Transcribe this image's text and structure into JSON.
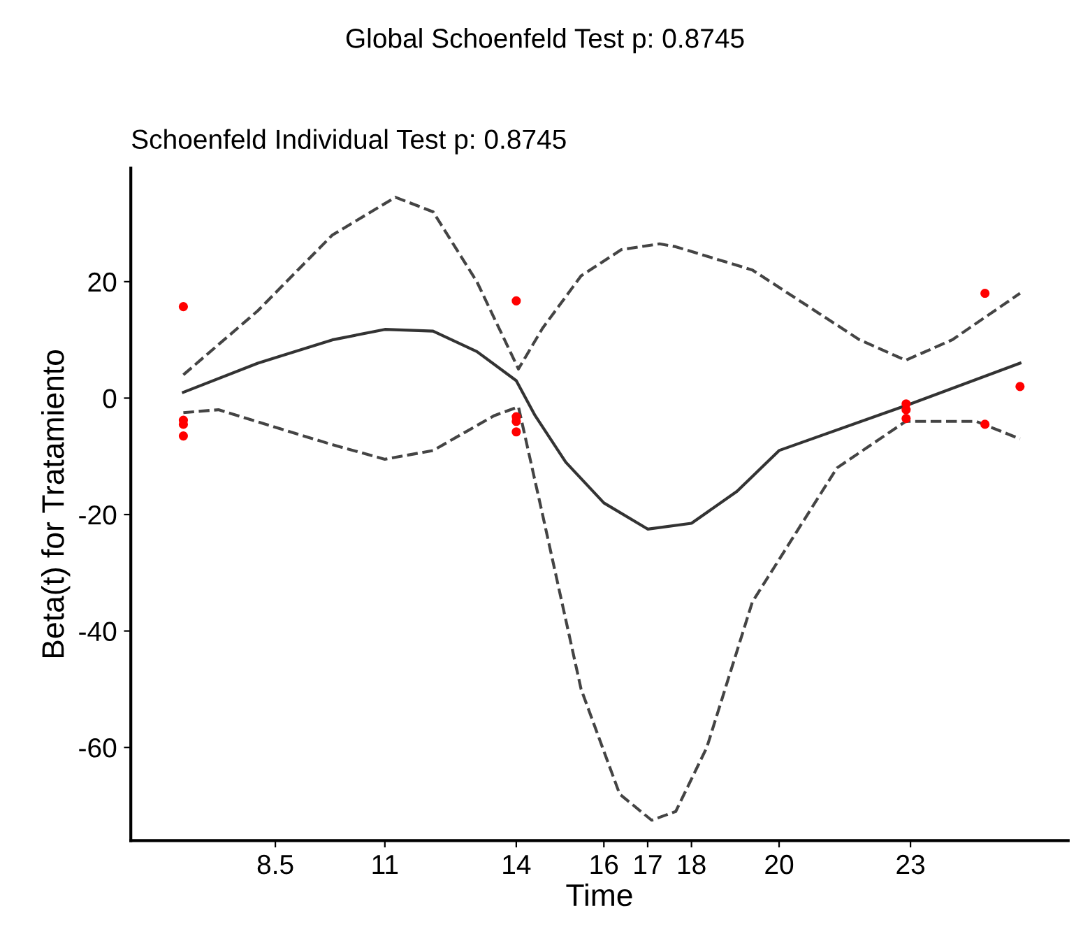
{
  "chart_data": {
    "type": "line",
    "title": "Global Schoenfeld Test p: 0.8745",
    "subtitle": "Schoenfeld Individual Test p: 0.8745",
    "xlabel": "Time",
    "ylabel": "Beta(t) for Tratamiento",
    "xlim": [
      5.2,
      26.6
    ],
    "ylim": [
      -76,
      39.5
    ],
    "xticks": [
      8.5,
      11,
      14,
      16,
      17,
      18,
      20,
      23
    ],
    "yticks": [
      -60,
      -40,
      -20,
      0,
      20
    ],
    "grid": false,
    "legend": false,
    "series": [
      {
        "color": "#333333",
        "line_style": "solid",
        "x": [
          6.4,
          8.1,
          9.8,
          11,
          12.1,
          13.1,
          14,
          14.43,
          15.13,
          16,
          17,
          18,
          19.04,
          20,
          23,
          25.5
        ],
        "values": [
          1,
          6,
          10,
          11.8,
          11.5,
          8,
          3,
          -3,
          -11,
          -18,
          -22.5,
          -21.5,
          -16,
          -9,
          -1,
          6
        ]
      },
      {
        "color": "#444444",
        "line_style": "dashed",
        "x": [
          6.4,
          8.1,
          9.8,
          11.24,
          12.1,
          13.1,
          14.05,
          14.6,
          15.48,
          16.4,
          17.27,
          17.64,
          19.39,
          21.84,
          22.89,
          23.95,
          25.5
        ],
        "values": [
          4,
          15,
          28,
          34.5,
          32,
          20,
          5,
          12,
          21,
          25.5,
          26.5,
          26,
          22,
          10,
          6.5,
          10,
          18
        ]
      },
      {
        "color": "#444444",
        "line_style": "dashed",
        "x": [
          6.4,
          7.2,
          9.8,
          11,
          12.1,
          13.5,
          14.05,
          14.6,
          15.48,
          16.36,
          17.09,
          17.64,
          18.35,
          19.39,
          21.32,
          22.89,
          24.5,
          25.5
        ],
        "values": [
          -2.5,
          -2,
          -8,
          -10.5,
          -9,
          -3,
          -1.5,
          -20,
          -50,
          -68,
          -72.5,
          -71,
          -60,
          -35,
          -12,
          -4,
          -4,
          -7
        ]
      },
      {
        "type": "scatter",
        "color": "#ff0000",
        "marker": "circle",
        "x": [
          6.4,
          6.4,
          6.4,
          6.4,
          14,
          14,
          14,
          14,
          22.9,
          22.9,
          22.9,
          24.7,
          24.7,
          25.5
        ],
        "values": [
          15.7,
          -3.8,
          -4.5,
          -6.5,
          16.7,
          -3.2,
          -4,
          -5.8,
          -1,
          -2,
          -3.5,
          18,
          -4.5,
          2
        ]
      }
    ]
  }
}
